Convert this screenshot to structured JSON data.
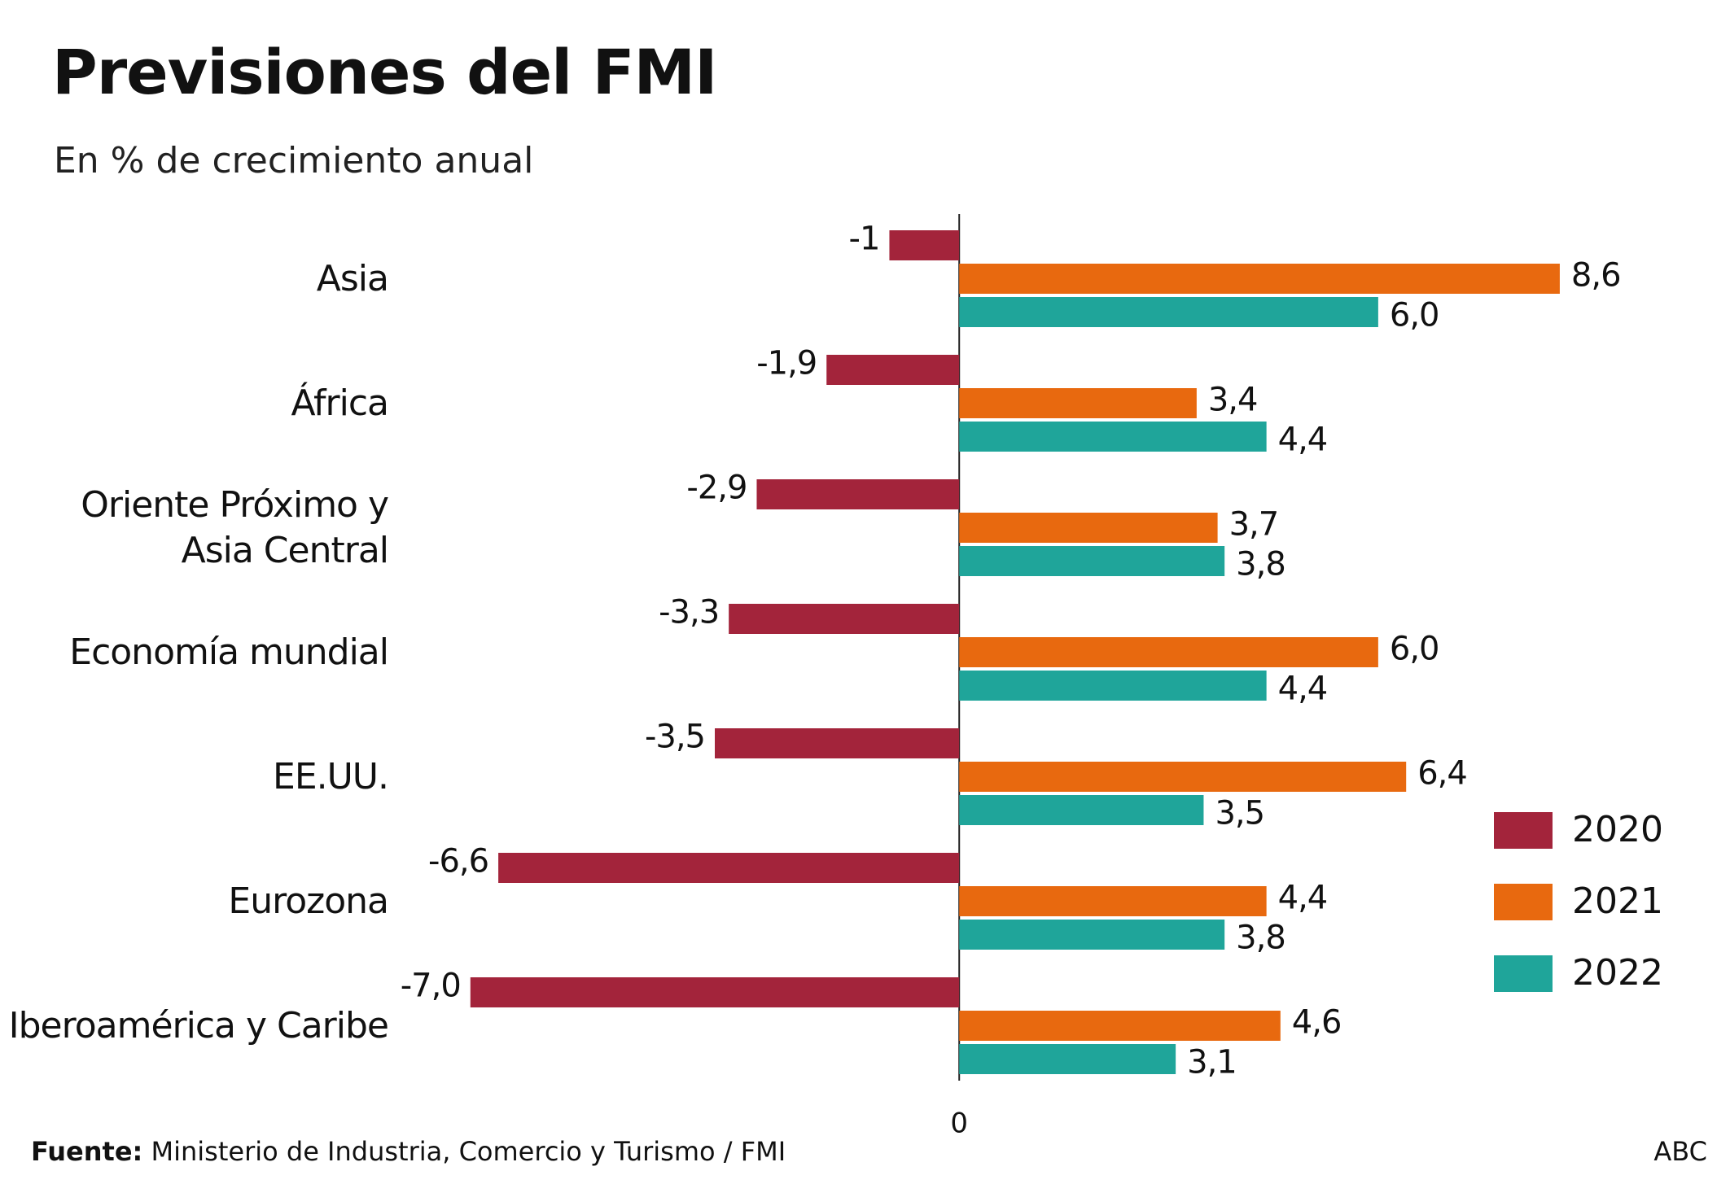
{
  "chart_data": {
    "type": "hbar",
    "title": "Previsiones del FMI",
    "subtitle": "En % de crecimiento anual",
    "categories": [
      "Asia",
      "África",
      "Oriente Próximo y Asia Central",
      "Economía mundial",
      "EE.UU.",
      "Eurozona",
      "Iberoamérica y Caribe"
    ],
    "series": [
      {
        "name": "2020",
        "color": "#a3243b",
        "values": [
          -1,
          -1.9,
          -2.9,
          -3.3,
          -3.5,
          -6.6,
          -7.0
        ],
        "value_labels": [
          "-1",
          "-1,9",
          "-2,9",
          "-3,3",
          "-3,5",
          "-6,6",
          "-7,0"
        ]
      },
      {
        "name": "2021",
        "color": "#e8690f",
        "values": [
          8.6,
          3.4,
          3.7,
          6.0,
          6.4,
          4.4,
          4.6
        ],
        "value_labels": [
          "8,6",
          "3,4",
          "3,7",
          "6,0",
          "6,4",
          "4,4",
          "4,6"
        ]
      },
      {
        "name": "2022",
        "color": "#1fa59a",
        "values": [
          6.0,
          4.4,
          3.8,
          4.4,
          3.5,
          3.8,
          3.1
        ],
        "value_labels": [
          "6,0",
          "4,4",
          "3,8",
          "4,4",
          "3,5",
          "3,8",
          "3,1"
        ]
      }
    ],
    "xlim": [
      -8,
      10
    ],
    "xticks": [
      0
    ],
    "source_label": "Fuente:",
    "source": "Ministerio de Industria, Comercio y Turismo / FMI",
    "credit": "ABC"
  }
}
